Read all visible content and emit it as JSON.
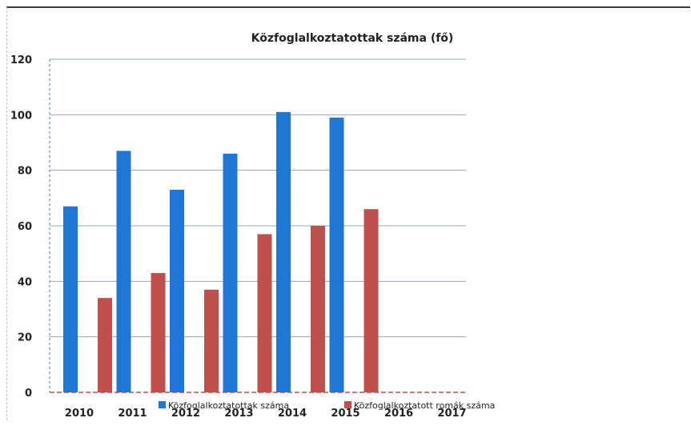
{
  "chart_data": {
    "type": "bar",
    "title": "Közfoglalkoztatottak száma (fő)",
    "categories": [
      "2010",
      "2011",
      "2012",
      "2013",
      "2014",
      "2015",
      "2016",
      "2017"
    ],
    "series": [
      {
        "name": "Közfoglalkoztatottak száma",
        "values": [
          67,
          87,
          73,
          86,
          101,
          99,
          null,
          null
        ],
        "color": "#1f77d4"
      },
      {
        "name": "Közfoglalkoztatott romák száma",
        "values": [
          34,
          43,
          37,
          57,
          60,
          66,
          null,
          null
        ],
        "color": "#c0504d"
      }
    ],
    "ylim": [
      0,
      120
    ],
    "yticks": [
      0,
      20,
      40,
      60,
      80,
      100,
      120
    ],
    "grid": true,
    "legend_position": "bottom"
  }
}
